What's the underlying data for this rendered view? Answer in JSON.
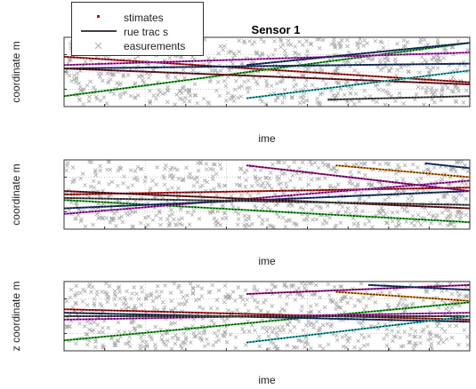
{
  "chart_data": {
    "type": "line",
    "title": "Sensor 1",
    "legend": {
      "placement": "top-left",
      "entries": [
        {
          "label": "stimates",
          "symbol": "dot",
          "color": "#cc0000"
        },
        {
          "label": "rue trac s",
          "symbol": "line",
          "color": "#000000"
        },
        {
          "label": "easurements",
          "symbol": "x",
          "color": "#aaaaaa"
        }
      ]
    },
    "subplots": [
      {
        "xlabel": "ime",
        "ylabel": "coordinate  m",
        "xlim": [
          0,
          1
        ],
        "ylim": [
          0,
          1
        ],
        "grid": true,
        "tracks": [
          {
            "color": "#cc2222",
            "x": [
              0.0,
              1.0
            ],
            "y": [
              0.72,
              0.35
            ]
          },
          {
            "color": "#33bb33",
            "x": [
              0.0,
              1.0
            ],
            "y": [
              0.15,
              0.92
            ]
          },
          {
            "color": "#cc33cc",
            "x": [
              0.0,
              1.0
            ],
            "y": [
              0.6,
              0.78
            ]
          },
          {
            "color": "#1f3f7a",
            "x": [
              0.0,
              1.0
            ],
            "y": [
              0.55,
              0.62
            ]
          },
          {
            "color": "#7a1f2a",
            "x": [
              0.0,
              1.0
            ],
            "y": [
              0.55,
              0.32
            ]
          },
          {
            "color": "#2fbdbd",
            "x": [
              0.45,
              1.0
            ],
            "y": [
              0.12,
              0.52
            ]
          },
          {
            "color": "#1f3f7a",
            "x": [
              0.45,
              1.0
            ],
            "y": [
              0.6,
              0.92
            ]
          },
          {
            "color": "#555555",
            "x": [
              0.65,
              1.0
            ],
            "y": [
              0.1,
              0.15
            ]
          }
        ]
      },
      {
        "xlabel": "ime",
        "ylabel": "coordinate  m",
        "xlim": [
          0,
          1
        ],
        "ylim": [
          0,
          1
        ],
        "grid": true,
        "tracks": [
          {
            "color": "#cc2222",
            "x": [
              0.0,
              1.0
            ],
            "y": [
              0.5,
              0.6
            ]
          },
          {
            "color": "#33bb33",
            "x": [
              0.0,
              1.0
            ],
            "y": [
              0.42,
              0.1
            ]
          },
          {
            "color": "#cc33cc",
            "x": [
              0.0,
              1.0
            ],
            "y": [
              0.22,
              0.7
            ]
          },
          {
            "color": "#1f3f7a",
            "x": [
              0.0,
              1.0
            ],
            "y": [
              0.3,
              0.55
            ]
          },
          {
            "color": "#7a1f2a",
            "x": [
              0.0,
              1.0
            ],
            "y": [
              0.55,
              0.3
            ]
          },
          {
            "color": "#555555",
            "x": [
              0.0,
              1.0
            ],
            "y": [
              0.45,
              0.35
            ]
          },
          {
            "color": "#b0209a",
            "x": [
              0.45,
              1.0
            ],
            "y": [
              0.92,
              0.55
            ]
          },
          {
            "color": "#e08a20",
            "x": [
              0.67,
              1.0
            ],
            "y": [
              0.92,
              0.75
            ]
          },
          {
            "color": "#1f3f7a",
            "x": [
              0.89,
              1.0
            ],
            "y": [
              0.95,
              0.88
            ]
          }
        ]
      },
      {
        "xlabel": "ime",
        "ylabel": "z coordinate  m",
        "xlim": [
          0,
          1
        ],
        "ylim": [
          0,
          1
        ],
        "grid": true,
        "tracks": [
          {
            "color": "#cc2222",
            "x": [
              0.0,
              1.0
            ],
            "y": [
              0.6,
              0.45
            ]
          },
          {
            "color": "#33bb33",
            "x": [
              0.0,
              1.0
            ],
            "y": [
              0.15,
              0.7
            ]
          },
          {
            "color": "#cc33cc",
            "x": [
              0.0,
              1.0
            ],
            "y": [
              0.45,
              0.55
            ]
          },
          {
            "color": "#1f3f7a",
            "x": [
              0.0,
              1.0
            ],
            "y": [
              0.55,
              0.42
            ]
          },
          {
            "color": "#555555",
            "x": [
              0.0,
              1.0
            ],
            "y": [
              0.5,
              0.5
            ]
          },
          {
            "color": "#2fbdbd",
            "x": [
              0.45,
              1.0
            ],
            "y": [
              0.12,
              0.5
            ]
          },
          {
            "color": "#b0209a",
            "x": [
              0.45,
              1.0
            ],
            "y": [
              0.82,
              0.95
            ]
          },
          {
            "color": "#e08a20",
            "x": [
              0.67,
              1.0
            ],
            "y": [
              0.85,
              0.72
            ]
          },
          {
            "color": "#1f3f7a",
            "x": [
              0.75,
              1.0
            ],
            "y": [
              0.95,
              0.88
            ]
          }
        ]
      }
    ]
  }
}
